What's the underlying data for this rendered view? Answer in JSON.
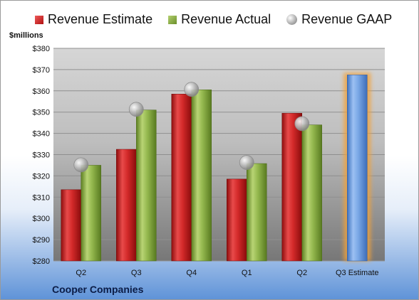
{
  "chart_data": {
    "type": "bar",
    "y_unit_label": "$millions",
    "company": "Cooper Companies",
    "categories": [
      "Q2",
      "Q3",
      "Q4",
      "Q1",
      "Q2",
      "Q3 Estimate"
    ],
    "ylim": [
      280,
      380
    ],
    "y_ticks": [
      "$280",
      "$290",
      "$300",
      "$310",
      "$320",
      "$330",
      "$340",
      "$350",
      "$360",
      "$370",
      "$380"
    ],
    "y_tick_values": [
      280,
      290,
      300,
      310,
      320,
      330,
      340,
      350,
      360,
      370,
      380
    ],
    "series": [
      {
        "name": "Revenue Estimate",
        "values": [
          313.5,
          332.5,
          358.5,
          318.5,
          349.5,
          null
        ],
        "color": "#c0181a"
      },
      {
        "name": "Revenue Actual",
        "values": [
          325,
          351,
          360.5,
          325.8,
          344,
          null
        ],
        "color": "#8db04a"
      },
      {
        "name": "Revenue GAAP",
        "values": [
          325.2,
          351.3,
          360.7,
          326.3,
          344.6,
          null
        ],
        "color": "#b5b5b5"
      }
    ],
    "projection": {
      "category": "Q3 Estimate",
      "value": 367.5,
      "color": "#6d9ee0"
    },
    "grid": true,
    "legend": "top"
  }
}
